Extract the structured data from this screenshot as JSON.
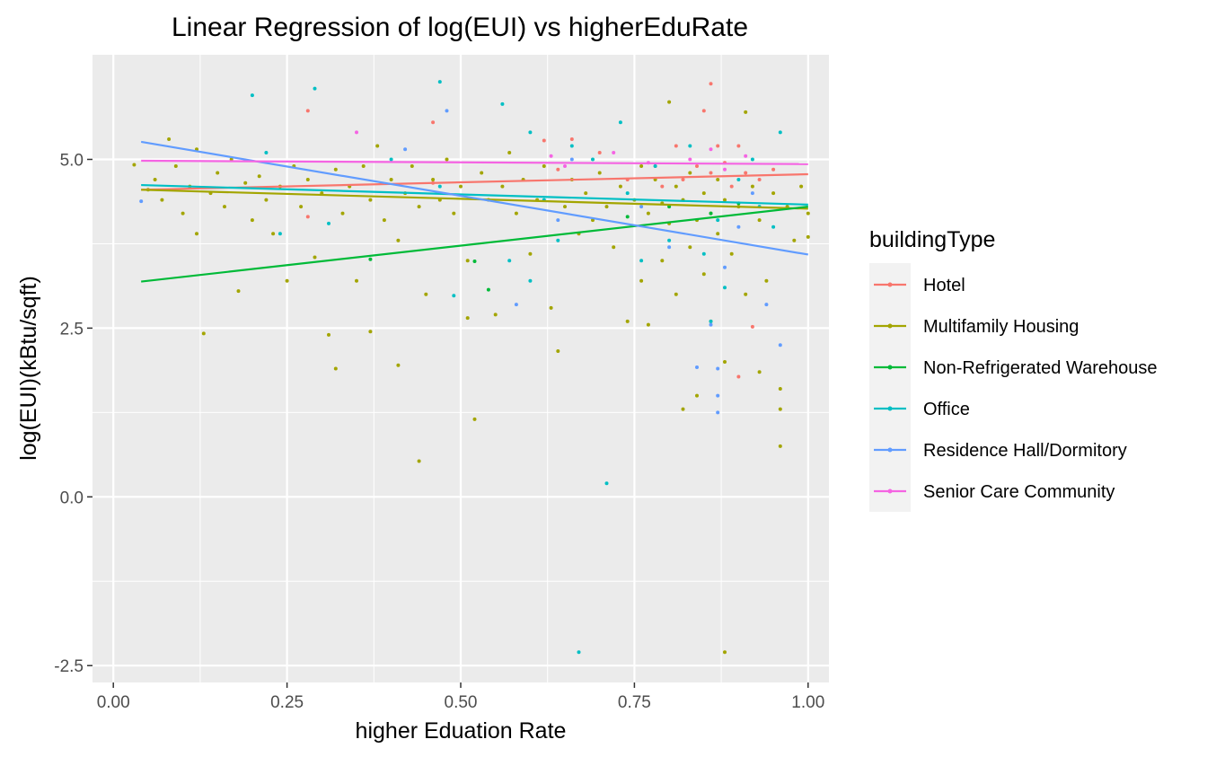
{
  "chart_data": {
    "type": "scatter",
    "title": "Linear Regression of log(EUI) vs higherEduRate",
    "xlabel": "higher Eduation Rate",
    "ylabel": "log(EUI)(kBtu/sqft)",
    "xlim": [
      -0.03,
      1.03
    ],
    "ylim": [
      -2.75,
      6.55
    ],
    "x_ticks": [
      0.0,
      0.25,
      0.5,
      0.75,
      1.0
    ],
    "x_tick_labels": [
      "0.00",
      "0.25",
      "0.50",
      "0.75",
      "1.00"
    ],
    "y_ticks": [
      -2.5,
      0.0,
      2.5,
      5.0
    ],
    "y_tick_labels": [
      "-2.5",
      "0.0",
      "2.5",
      "5.0"
    ],
    "grid": true,
    "legend_title": "buildingType",
    "legend_position": "right",
    "series": [
      {
        "name": "Hotel",
        "color": "#F8766D",
        "fit": {
          "x": [
            0.04,
            1.0
          ],
          "y": [
            4.55,
            4.78
          ]
        },
        "points": [
          [
            0.28,
            5.72
          ],
          [
            0.28,
            4.15
          ],
          [
            0.46,
            4.65
          ],
          [
            0.46,
            5.55
          ],
          [
            0.62,
            5.28
          ],
          [
            0.64,
            4.85
          ],
          [
            0.66,
            5.3
          ],
          [
            0.7,
            5.1
          ],
          [
            0.74,
            4.7
          ],
          [
            0.78,
            4.9
          ],
          [
            0.79,
            4.6
          ],
          [
            0.81,
            5.2
          ],
          [
            0.82,
            4.7
          ],
          [
            0.84,
            4.9
          ],
          [
            0.85,
            5.72
          ],
          [
            0.86,
            6.12
          ],
          [
            0.86,
            4.8
          ],
          [
            0.87,
            5.2
          ],
          [
            0.88,
            4.95
          ],
          [
            0.89,
            4.6
          ],
          [
            0.9,
            5.2
          ],
          [
            0.91,
            4.8
          ],
          [
            0.92,
            2.52
          ],
          [
            0.93,
            4.7
          ],
          [
            0.95,
            4.85
          ],
          [
            0.9,
            1.78
          ]
        ]
      },
      {
        "name": "Multifamily Housing",
        "color": "#A3A500",
        "fit": {
          "x": [
            0.04,
            1.0
          ],
          "y": [
            4.55,
            4.27
          ]
        },
        "points": [
          [
            0.03,
            4.92
          ],
          [
            0.05,
            4.55
          ],
          [
            0.06,
            4.7
          ],
          [
            0.07,
            4.4
          ],
          [
            0.08,
            5.3
          ],
          [
            0.09,
            4.9
          ],
          [
            0.1,
            4.2
          ],
          [
            0.11,
            4.6
          ],
          [
            0.12,
            3.9
          ],
          [
            0.12,
            5.15
          ],
          [
            0.13,
            2.42
          ],
          [
            0.14,
            4.5
          ],
          [
            0.15,
            4.8
          ],
          [
            0.16,
            4.3
          ],
          [
            0.17,
            5.0
          ],
          [
            0.18,
            3.05
          ],
          [
            0.19,
            4.65
          ],
          [
            0.2,
            4.1
          ],
          [
            0.21,
            4.75
          ],
          [
            0.22,
            4.4
          ],
          [
            0.23,
            3.9
          ],
          [
            0.24,
            4.6
          ],
          [
            0.25,
            3.2
          ],
          [
            0.26,
            4.9
          ],
          [
            0.27,
            4.3
          ],
          [
            0.28,
            4.7
          ],
          [
            0.29,
            3.55
          ],
          [
            0.3,
            4.5
          ],
          [
            0.31,
            2.4
          ],
          [
            0.32,
            4.85
          ],
          [
            0.32,
            1.9
          ],
          [
            0.33,
            4.2
          ],
          [
            0.34,
            4.6
          ],
          [
            0.35,
            3.2
          ],
          [
            0.36,
            4.9
          ],
          [
            0.37,
            4.4
          ],
          [
            0.37,
            2.45
          ],
          [
            0.38,
            5.2
          ],
          [
            0.39,
            4.1
          ],
          [
            0.4,
            4.7
          ],
          [
            0.41,
            1.95
          ],
          [
            0.41,
            3.8
          ],
          [
            0.42,
            4.5
          ],
          [
            0.43,
            4.9
          ],
          [
            0.44,
            0.53
          ],
          [
            0.44,
            4.3
          ],
          [
            0.45,
            3.0
          ],
          [
            0.46,
            4.7
          ],
          [
            0.47,
            4.4
          ],
          [
            0.48,
            5.0
          ],
          [
            0.49,
            4.2
          ],
          [
            0.5,
            4.6
          ],
          [
            0.51,
            3.5
          ],
          [
            0.51,
            2.65
          ],
          [
            0.52,
            1.15
          ],
          [
            0.53,
            4.8
          ],
          [
            0.54,
            4.4
          ],
          [
            0.55,
            2.7
          ],
          [
            0.56,
            4.6
          ],
          [
            0.57,
            5.1
          ],
          [
            0.58,
            4.2
          ],
          [
            0.59,
            4.7
          ],
          [
            0.6,
            3.6
          ],
          [
            0.61,
            4.4
          ],
          [
            0.62,
            4.9
          ],
          [
            0.63,
            2.8
          ],
          [
            0.64,
            2.16
          ],
          [
            0.65,
            4.3
          ],
          [
            0.66,
            4.7
          ],
          [
            0.67,
            3.9
          ],
          [
            0.68,
            4.5
          ],
          [
            0.69,
            4.1
          ],
          [
            0.7,
            4.8
          ],
          [
            0.71,
            4.3
          ],
          [
            0.72,
            3.7
          ],
          [
            0.73,
            4.6
          ],
          [
            0.74,
            2.6
          ],
          [
            0.75,
            4.4
          ],
          [
            0.76,
            3.2
          ],
          [
            0.76,
            4.9
          ],
          [
            0.77,
            4.2
          ],
          [
            0.77,
            2.55
          ],
          [
            0.78,
            4.7
          ],
          [
            0.79,
            3.5
          ],
          [
            0.79,
            4.35
          ],
          [
            0.8,
            5.85
          ],
          [
            0.8,
            4.05
          ],
          [
            0.81,
            4.6
          ],
          [
            0.81,
            3.0
          ],
          [
            0.82,
            1.3
          ],
          [
            0.82,
            4.4
          ],
          [
            0.83,
            3.7
          ],
          [
            0.83,
            4.8
          ],
          [
            0.84,
            4.1
          ],
          [
            0.84,
            1.5
          ],
          [
            0.85,
            4.5
          ],
          [
            0.85,
            3.3
          ],
          [
            0.86,
            4.2
          ],
          [
            0.86,
            2.6
          ],
          [
            0.87,
            4.7
          ],
          [
            0.87,
            3.9
          ],
          [
            0.88,
            2.0
          ],
          [
            0.88,
            4.4
          ],
          [
            0.88,
            -2.3
          ],
          [
            0.89,
            3.6
          ],
          [
            0.9,
            4.3
          ],
          [
            0.91,
            5.7
          ],
          [
            0.91,
            3.0
          ],
          [
            0.92,
            4.6
          ],
          [
            0.93,
            1.85
          ],
          [
            0.93,
            4.1
          ],
          [
            0.94,
            3.2
          ],
          [
            0.95,
            4.5
          ],
          [
            0.96,
            1.6
          ],
          [
            0.96,
            1.3
          ],
          [
            0.96,
            0.75
          ],
          [
            0.97,
            4.3
          ],
          [
            0.98,
            3.8
          ],
          [
            0.99,
            4.6
          ],
          [
            1.0,
            4.2
          ],
          [
            1.0,
            3.85
          ]
        ]
      },
      {
        "name": "Non-Refrigerated Warehouse",
        "color": "#00BA38",
        "fit": {
          "x": [
            0.04,
            1.0
          ],
          "y": [
            3.19,
            4.3
          ]
        },
        "points": [
          [
            0.37,
            3.52
          ],
          [
            0.54,
            3.07
          ],
          [
            0.52,
            3.49
          ],
          [
            0.74,
            4.15
          ],
          [
            0.8,
            4.3
          ],
          [
            0.86,
            4.2
          ],
          [
            0.9,
            4.35
          ]
        ]
      },
      {
        "name": "Office",
        "color": "#00BFC4",
        "fit": {
          "x": [
            0.04,
            1.0
          ],
          "y": [
            4.62,
            4.33
          ]
        },
        "points": [
          [
            0.2,
            5.95
          ],
          [
            0.22,
            5.1
          ],
          [
            0.24,
            3.9
          ],
          [
            0.29,
            6.05
          ],
          [
            0.31,
            4.05
          ],
          [
            0.4,
            5.0
          ],
          [
            0.47,
            6.15
          ],
          [
            0.47,
            4.6
          ],
          [
            0.49,
            2.98
          ],
          [
            0.56,
            5.82
          ],
          [
            0.57,
            3.5
          ],
          [
            0.6,
            3.2
          ],
          [
            0.6,
            5.4
          ],
          [
            0.62,
            4.4
          ],
          [
            0.64,
            3.8
          ],
          [
            0.66,
            5.2
          ],
          [
            0.67,
            -2.3
          ],
          [
            0.69,
            5.0
          ],
          [
            0.71,
            0.2
          ],
          [
            0.73,
            5.55
          ],
          [
            0.74,
            4.5
          ],
          [
            0.76,
            3.5
          ],
          [
            0.78,
            4.9
          ],
          [
            0.8,
            3.8
          ],
          [
            0.83,
            5.2
          ],
          [
            0.85,
            3.6
          ],
          [
            0.86,
            2.6
          ],
          [
            0.87,
            4.1
          ],
          [
            0.88,
            3.1
          ],
          [
            0.9,
            4.7
          ],
          [
            0.92,
            5.0
          ],
          [
            0.93,
            4.3
          ],
          [
            0.95,
            4.0
          ],
          [
            0.96,
            5.4
          ]
        ]
      },
      {
        "name": "Residence Hall/Dormitory",
        "color": "#619CFF",
        "fit": {
          "x": [
            0.04,
            1.0
          ],
          "y": [
            5.26,
            3.59
          ]
        },
        "points": [
          [
            0.04,
            4.38
          ],
          [
            0.42,
            5.15
          ],
          [
            0.48,
            5.72
          ],
          [
            0.58,
            2.85
          ],
          [
            0.64,
            4.1
          ],
          [
            0.66,
            5.0
          ],
          [
            0.76,
            4.3
          ],
          [
            0.8,
            3.7
          ],
          [
            0.84,
            1.92
          ],
          [
            0.86,
            2.55
          ],
          [
            0.87,
            1.9
          ],
          [
            0.87,
            1.5
          ],
          [
            0.87,
            1.25
          ],
          [
            0.88,
            3.4
          ],
          [
            0.9,
            4.0
          ],
          [
            0.92,
            4.5
          ],
          [
            0.94,
            2.85
          ],
          [
            0.96,
            2.25
          ]
        ]
      },
      {
        "name": "Senior Care Community",
        "color": "#F564E3",
        "fit": {
          "x": [
            0.04,
            1.0
          ],
          "y": [
            4.98,
            4.93
          ]
        },
        "points": [
          [
            0.35,
            5.4
          ],
          [
            0.63,
            5.05
          ],
          [
            0.65,
            4.9
          ],
          [
            0.72,
            5.1
          ],
          [
            0.77,
            4.95
          ],
          [
            0.83,
            5.0
          ],
          [
            0.86,
            5.15
          ],
          [
            0.88,
            4.85
          ],
          [
            0.91,
            5.05
          ]
        ]
      }
    ]
  }
}
